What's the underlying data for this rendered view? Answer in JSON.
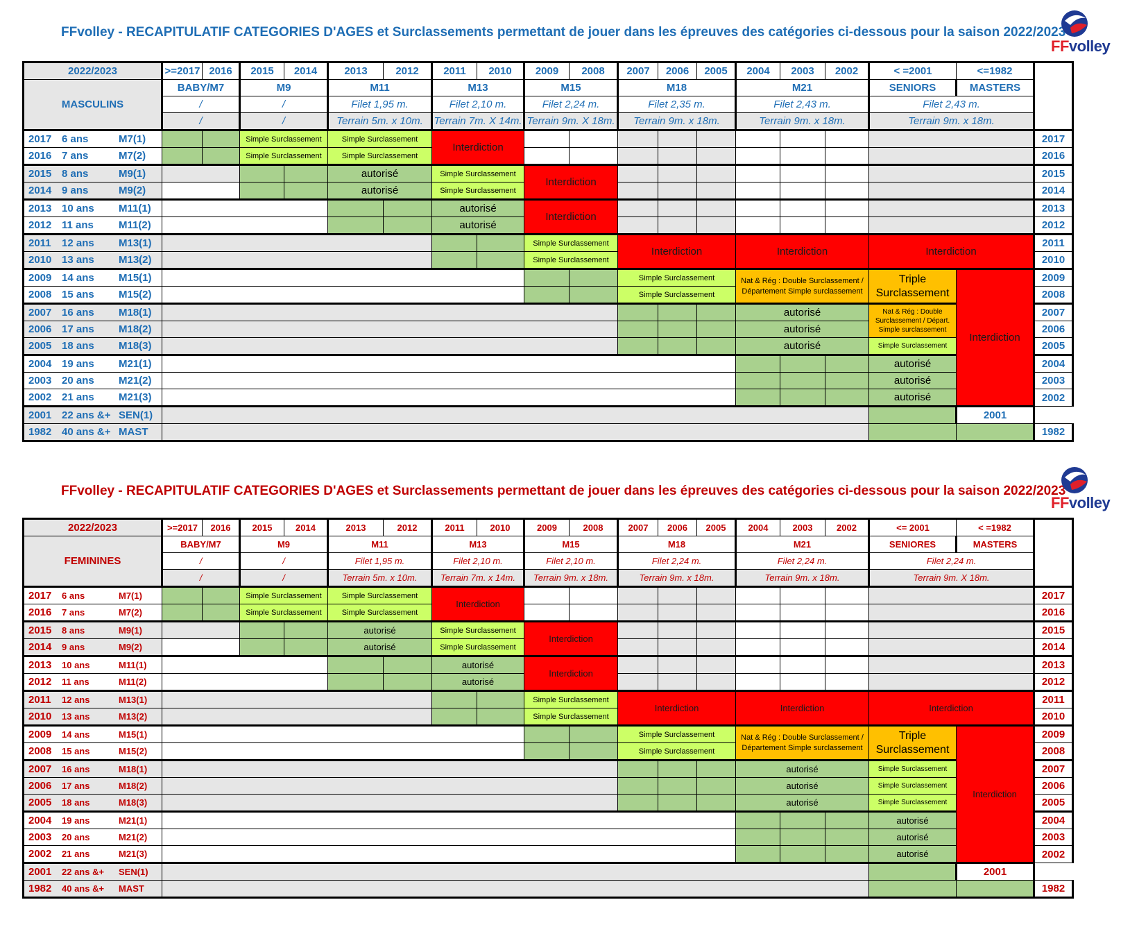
{
  "masculins": {
    "title": "FFvolley - RECAPITULATIF CATEGORIES D'AGES et Surclassements permettant de jouer dans les épreuves des catégories ci-dessous pour la saison 2022/2023",
    "season": "2022/2023",
    "section_label": "MASCULINS",
    "years_header": [
      ">=2017",
      "2016",
      "2015",
      "2014",
      "2013",
      "2012",
      "2011",
      "2010",
      "2009",
      "2008",
      "2007",
      "2006",
      "2005",
      "2004",
      "2003",
      "2002",
      "< =2001",
      "<=1982"
    ],
    "categories": [
      "BABY/M7",
      "M9",
      "M11",
      "M13",
      "M15",
      "M18",
      "M21",
      "SENIORS",
      "MASTERS"
    ],
    "filet": [
      "/",
      "/",
      "Filet 1,95 m.",
      "Filet 2,10 m.",
      "Filet 2,24 m.",
      "Filet 2,35 m.",
      "Filet 2,43 m.",
      "Filet 2,43 m."
    ],
    "terrain": [
      "/",
      "/",
      "Terrain 5m. x 10m.",
      "Terrain 7m. X 14m.",
      "Terrain 9m. X 18m.",
      "Terrain 9m. x 18m.",
      "Terrain 9m. x 18m.",
      "Terrain 9m. x 18m."
    ],
    "rows": [
      {
        "year": "2017",
        "age": "6 ans",
        "cat": "M7(1)"
      },
      {
        "year": "2016",
        "age": "7 ans",
        "cat": "M7(2)"
      },
      {
        "year": "2015",
        "age": "8 ans",
        "cat": "M9(1)"
      },
      {
        "year": "2014",
        "age": "9 ans",
        "cat": "M9(2)"
      },
      {
        "year": "2013",
        "age": "10 ans",
        "cat": "M11(1)"
      },
      {
        "year": "2012",
        "age": "11 ans",
        "cat": "M11(2)"
      },
      {
        "year": "2011",
        "age": "12 ans",
        "cat": "M13(1)"
      },
      {
        "year": "2010",
        "age": "13 ans",
        "cat": "M13(2)"
      },
      {
        "year": "2009",
        "age": "14 ans",
        "cat": "M15(1)"
      },
      {
        "year": "2008",
        "age": "15 ans",
        "cat": "M15(2)"
      },
      {
        "year": "2007",
        "age": "16 ans",
        "cat": "M18(1)"
      },
      {
        "year": "2006",
        "age": "17 ans",
        "cat": "M18(2)"
      },
      {
        "year": "2005",
        "age": "18 ans",
        "cat": "M18(3)"
      },
      {
        "year": "2004",
        "age": "19 ans",
        "cat": "M21(1)"
      },
      {
        "year": "2003",
        "age": "20 ans",
        "cat": "M21(2)"
      },
      {
        "year": "2002",
        "age": "21 ans",
        "cat": "M21(3)"
      },
      {
        "year": "2001",
        "age": "22 ans &+",
        "cat": "SEN(1)"
      },
      {
        "year": "1982",
        "age": "40 ans &+",
        "cat": "MAST"
      }
    ],
    "labels": {
      "simple": "Simple Surclassement",
      "interdiction": "Interdiction",
      "autorise": "autorisé",
      "nat_reg": "Nat & Rég : Double Surclassement / Département Simple surclassement",
      "triple": "Triple Surclassement",
      "nat_reg_short": "Nat & Rég : Double Surclassement / Départ. Simple surclassement"
    }
  },
  "feminines": {
    "title": "FFvolley - RECAPITULATIF CATEGORIES D'AGES et Surclassements permettant de jouer dans les épreuves des catégories ci-dessous pour la saison 2022/2023",
    "season": "2022/2023",
    "section_label": "FEMININES",
    "years_header": [
      ">=2017",
      "2016",
      "2015",
      "2014",
      "2013",
      "2012",
      "2011",
      "2010",
      "2009",
      "2008",
      "2007",
      "2006",
      "2005",
      "2004",
      "2003",
      "2002",
      "<= 2001",
      "< =1982"
    ],
    "categories": [
      "BABY/M7",
      "M9",
      "M11",
      "M13",
      "M15",
      "M18",
      "M21",
      "SENIORES",
      "MASTERS"
    ],
    "filet": [
      "/",
      "/",
      "Filet 1,95 m.",
      "Filet 2,10 m.",
      "Filet 2,10 m.",
      "Filet 2,24 m.",
      "Filet 2,24 m.",
      "Filet 2,24 m."
    ],
    "terrain": [
      "/",
      "/",
      "Terrain 5m. x 10m.",
      "Terrain 7m. x 14m.",
      "Terrain 9m. x 18m.",
      "Terrain 9m. x 18m.",
      "Terrain 9m. x 18m.",
      "Terrain 9m. X 18m."
    ],
    "rows": [
      {
        "year": "2017",
        "age": "6 ans",
        "cat": "M7(1)"
      },
      {
        "year": "2016",
        "age": "7 ans",
        "cat": "M7(2)"
      },
      {
        "year": "2015",
        "age": "8 ans",
        "cat": "M9(1)"
      },
      {
        "year": "2014",
        "age": "9 ans",
        "cat": "M9(2)"
      },
      {
        "year": "2013",
        "age": "10 ans",
        "cat": "M11(1)"
      },
      {
        "year": "2012",
        "age": "11 ans",
        "cat": "M11(2)"
      },
      {
        "year": "2011",
        "age": "12 ans",
        "cat": "M13(1)"
      },
      {
        "year": "2010",
        "age": "13 ans",
        "cat": "M13(2)"
      },
      {
        "year": "2009",
        "age": "14 ans",
        "cat": "M15(1)"
      },
      {
        "year": "2008",
        "age": "15 ans",
        "cat": "M15(2)"
      },
      {
        "year": "2007",
        "age": "16 ans",
        "cat": "M18(1)"
      },
      {
        "year": "2006",
        "age": "17 ans",
        "cat": "M18(2)"
      },
      {
        "year": "2005",
        "age": "18 ans",
        "cat": "M18(3)"
      },
      {
        "year": "2004",
        "age": "19 ans",
        "cat": "M21(1)"
      },
      {
        "year": "2003",
        "age": "20 ans",
        "cat": "M21(2)"
      },
      {
        "year": "2002",
        "age": "21 ans",
        "cat": "M21(3)"
      },
      {
        "year": "2001",
        "age": "22 ans &+",
        "cat": "SEN(1)"
      },
      {
        "year": "1982",
        "age": "40 ans &+",
        "cat": "MAST"
      }
    ],
    "labels": {
      "simple": "Simple Surclassement",
      "interdiction": "Interdiction",
      "autorise": "autorisé",
      "nat_reg": "Nat & Rég : Double Surclassement / Département Simple surclassement",
      "triple": "Triple Surclassement"
    }
  },
  "logo": {
    "text_ff": "FF",
    "text_volley": "volley"
  },
  "colors": {
    "blue_text": "#1f6eb5",
    "red_text": "#c00000",
    "green": "#a9d18e",
    "light_green": "#ccff66",
    "red": "#ff0000",
    "orange": "#ffc000",
    "grey": "#e6e6e6"
  }
}
